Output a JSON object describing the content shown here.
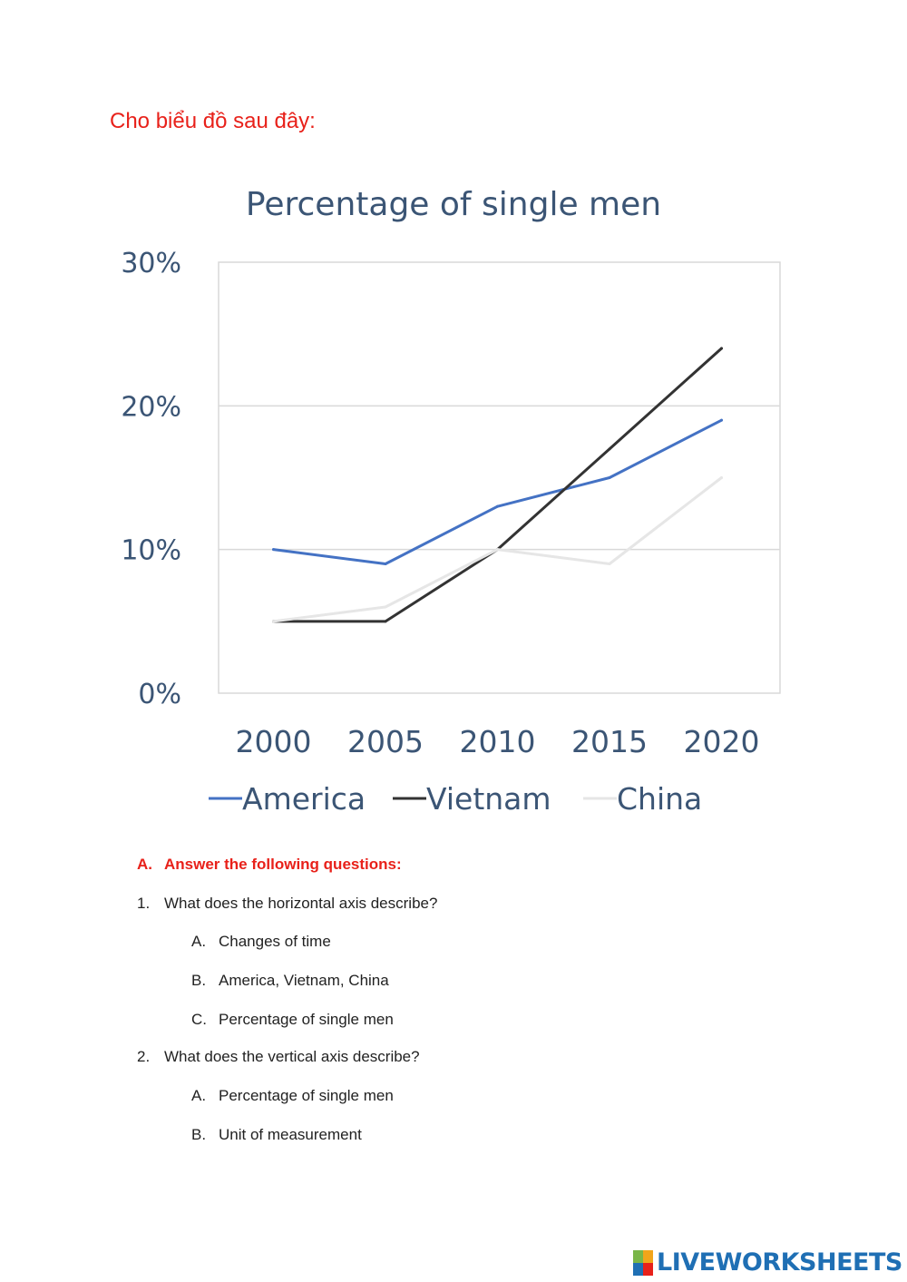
{
  "intro": "Cho biểu đồ sau đây:",
  "chart_data": {
    "type": "line",
    "title": "Percentage of single men",
    "categories": [
      "2000",
      "2005",
      "2010",
      "2015",
      "2020"
    ],
    "y_ticks": [
      "0%",
      "10%",
      "20%",
      "30%"
    ],
    "ylim": [
      0,
      30
    ],
    "xlabel": "",
    "ylabel": "",
    "grid": true,
    "legend_position": "bottom",
    "series": [
      {
        "name": "America",
        "color": "#4472c4",
        "values": [
          10,
          9,
          13,
          15,
          19
        ]
      },
      {
        "name": "Vietnam",
        "color": "#333333",
        "values": [
          5,
          5,
          10,
          17,
          24
        ]
      },
      {
        "name": "China",
        "color": "#e6e6e6",
        "values": [
          5,
          6,
          10,
          9,
          15
        ]
      }
    ],
    "text_color": "#3b5575",
    "gridline_color": "#d9d9d9"
  },
  "section_a": {
    "marker": "A.",
    "text": "Answer the following questions:"
  },
  "questions": [
    {
      "number": "1.",
      "text": "What does the horizontal axis describe?",
      "options": [
        {
          "letter": "A.",
          "text": "Changes of time"
        },
        {
          "letter": "B.",
          "text": "America, Vietnam, China"
        },
        {
          "letter": "C.",
          "text": "Percentage of single men"
        }
      ]
    },
    {
      "number": "2.",
      "text": "What does the vertical axis describe?",
      "options": [
        {
          "letter": "A.",
          "text": "Percentage of single men"
        },
        {
          "letter": "B.",
          "text": "Unit of measurement"
        }
      ]
    }
  ],
  "brand": {
    "name": "LIVEWORKSHEETS",
    "icon": "liveworksheets-logo-icon",
    "color": "#1f6fb4",
    "icon_colors": [
      "#7ab648",
      "#f2a51a",
      "#1f6fb4",
      "#e8211a"
    ]
  }
}
